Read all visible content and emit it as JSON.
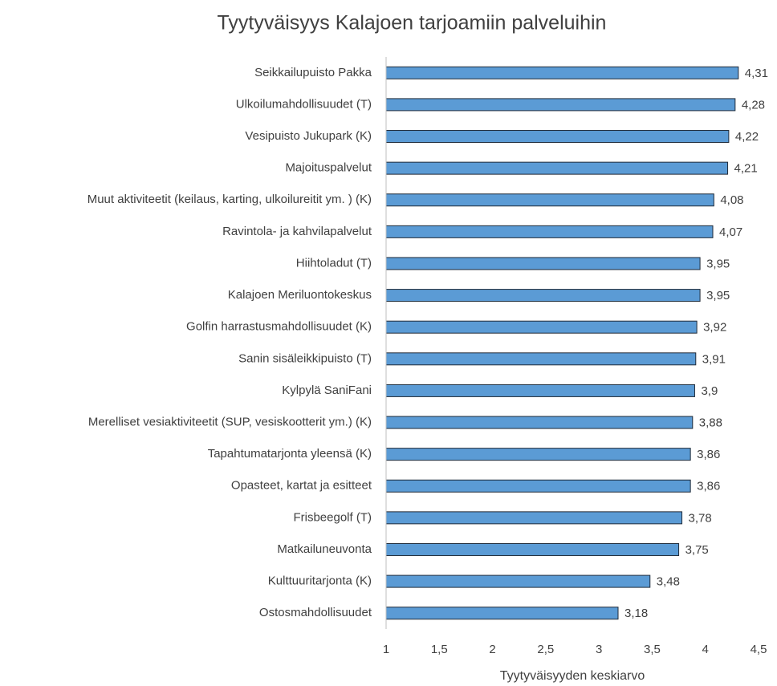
{
  "chart_data": {
    "type": "bar",
    "orientation": "horizontal",
    "title": "Tyytyväisyys Kalajoen tarjoamiin palveluihin",
    "x_label": "Tyytyväisyyden keskiarvo",
    "categories": [
      "Seikkailupuisto Pakka",
      "Ulkoilumahdollisuudet (T)",
      "Vesipuisto Jukupark (K)",
      "Majoituspalvelut",
      "Muut aktiviteetit (keilaus, karting, ulkoilureitit ym. ) (K)",
      "Ravintola- ja kahvilapalvelut",
      "Hiihtoladut (T)",
      "Kalajoen Meriluontokeskus",
      "Golfin harrastusmahdollisuudet (K)",
      "Sanin sisäleikkipuisto (T)",
      "Kylpylä SaniFani",
      "Merelliset vesiaktiviteetit (SUP, vesiskootterit ym.) (K)",
      "Tapahtumatarjonta yleensä (K)",
      "Opasteet, kartat ja esitteet",
      "Frisbeegolf (T)",
      "Matkailuneuvonta",
      "Kulttuuritarjonta (K)",
      "Ostosmahdollisuudet"
    ],
    "values": [
      4.31,
      4.28,
      4.22,
      4.21,
      4.08,
      4.07,
      3.95,
      3.95,
      3.92,
      3.91,
      3.9,
      3.88,
      3.86,
      3.86,
      3.78,
      3.75,
      3.48,
      3.18
    ],
    "value_labels": [
      "4,31",
      "4,28",
      "4,22",
      "4,21",
      "4,08",
      "4,07",
      "3,95",
      "3,95",
      "3,92",
      "3,91",
      "3,9",
      "3,88",
      "3,86",
      "3,86",
      "3,78",
      "3,75",
      "3,48",
      "3,18"
    ],
    "color": "#5b9bd5",
    "xlim": [
      1,
      4.5
    ],
    "xticks": [
      1,
      {
        "value": 1.5,
        "label": "1,5"
      },
      2,
      {
        "value": 2.5,
        "label": "2,5"
      },
      3,
      {
        "value": 3.5,
        "label": "3,5"
      },
      4,
      {
        "value": 4.5,
        "label": "4,5"
      }
    ],
    "grid": false
  }
}
